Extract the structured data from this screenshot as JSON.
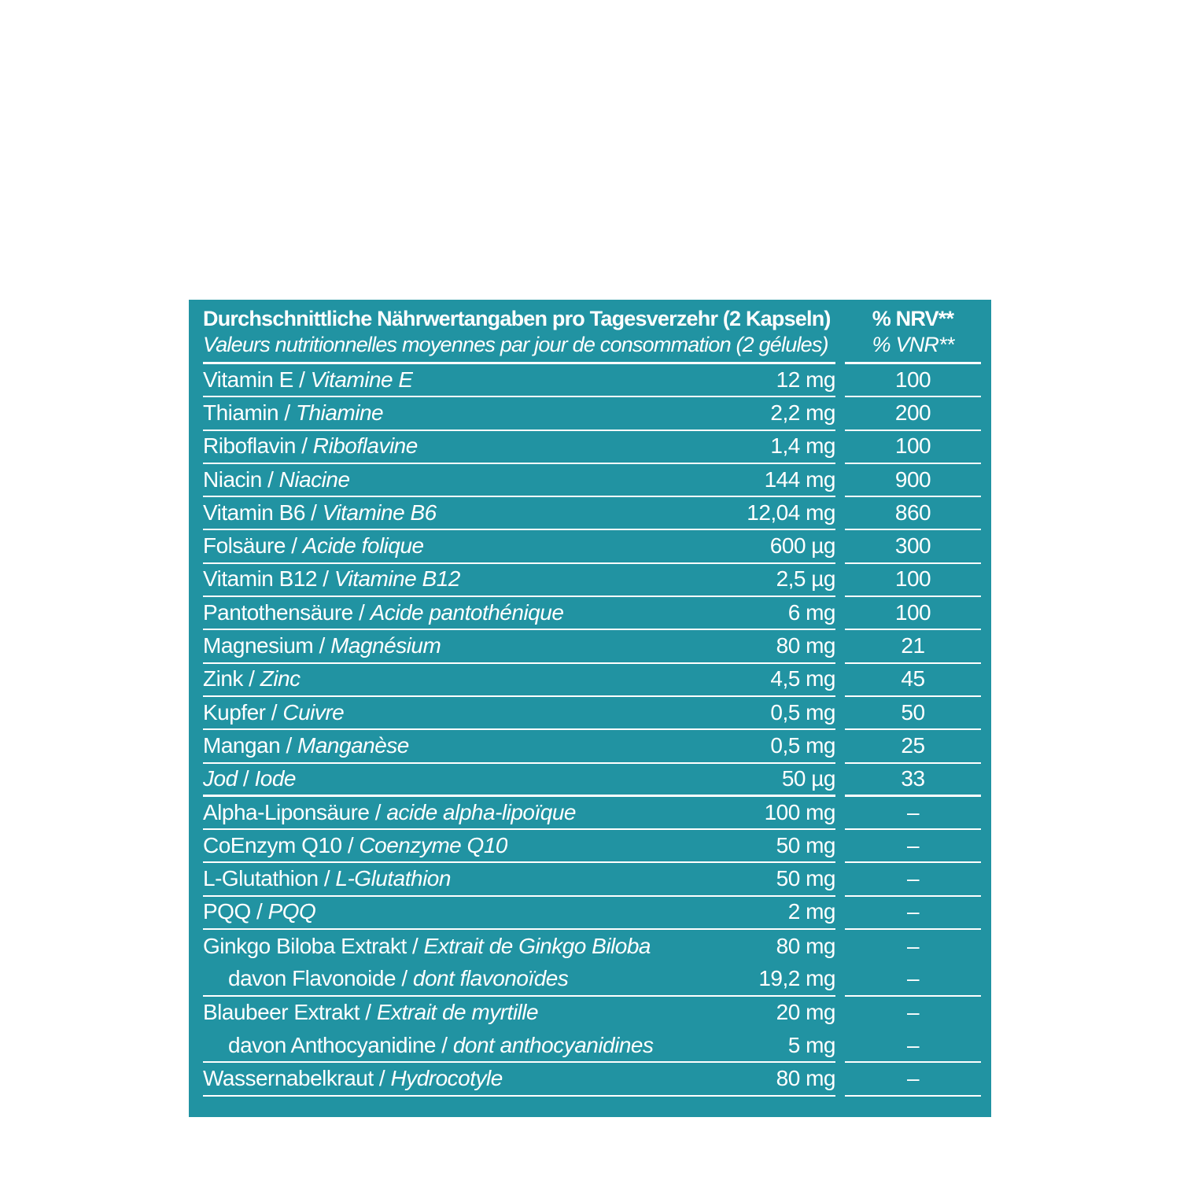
{
  "colors": {
    "panel_background": "#2193A2",
    "text": "#FFFFFF",
    "page_background": "#FFFFFF"
  },
  "separator": "/",
  "header": {
    "title_de": "Durchschnittliche Nährwertangaben pro Tagesverzehr (2 Kapseln)",
    "title_fr": "Valeurs nutritionnelles moyennes par jour de consommation (2 gélules)",
    "nrv_de": "% NRV**",
    "nrv_fr": "% VNR**"
  },
  "rows": [
    {
      "name_de": "Vitamin E",
      "name_fr": "Vitamine E",
      "amount": "12 mg",
      "nrv": "100",
      "italic_de": false,
      "indent": false,
      "divider": "normal"
    },
    {
      "name_de": "Thiamin",
      "name_fr": "Thiamine",
      "amount": "2,2 mg",
      "nrv": "200",
      "italic_de": false,
      "indent": false,
      "divider": "normal"
    },
    {
      "name_de": "Riboflavin",
      "name_fr": "Riboflavine",
      "amount": "1,4 mg",
      "nrv": "100",
      "italic_de": false,
      "indent": false,
      "divider": "normal"
    },
    {
      "name_de": "Niacin",
      "name_fr": "Niacine",
      "amount": "144 mg",
      "nrv": "900",
      "italic_de": false,
      "indent": false,
      "divider": "normal"
    },
    {
      "name_de": "Vitamin B6",
      "name_fr": "Vitamine B6",
      "amount": "12,04 mg",
      "nrv": "860",
      "italic_de": false,
      "indent": false,
      "divider": "normal"
    },
    {
      "name_de": "Folsäure",
      "name_fr": "Acide folique",
      "amount": "600 µg",
      "nrv": "300",
      "italic_de": false,
      "indent": false,
      "divider": "normal"
    },
    {
      "name_de": "Vitamin B12",
      "name_fr": "Vitamine B12",
      "amount": "2,5 µg",
      "nrv": "100",
      "italic_de": false,
      "indent": false,
      "divider": "normal"
    },
    {
      "name_de": "Pantothensäure",
      "name_fr": "Acide pantothénique",
      "amount": "6 mg",
      "nrv": "100",
      "italic_de": false,
      "indent": false,
      "divider": "normal"
    },
    {
      "name_de": "Magnesium",
      "name_fr": "Magnésium",
      "amount": "80 mg",
      "nrv": "21",
      "italic_de": false,
      "indent": false,
      "divider": "normal"
    },
    {
      "name_de": "Zink",
      "name_fr": "Zinc",
      "amount": "4,5 mg",
      "nrv": "45",
      "italic_de": false,
      "indent": false,
      "divider": "normal"
    },
    {
      "name_de": "Kupfer",
      "name_fr": "Cuivre",
      "amount": "0,5 mg",
      "nrv": "50",
      "italic_de": false,
      "indent": false,
      "divider": "normal"
    },
    {
      "name_de": "Mangan",
      "name_fr": "Manganèse",
      "amount": "0,5 mg",
      "nrv": "25",
      "italic_de": false,
      "indent": false,
      "divider": "normal"
    },
    {
      "name_de": "Jod",
      "name_fr": "Iode",
      "amount": "50 µg",
      "nrv": "33",
      "italic_de": true,
      "indent": false,
      "divider": "thick"
    },
    {
      "name_de": "Alpha-Liponsäure",
      "name_fr": "acide alpha-lipoïque",
      "amount": "100 mg",
      "nrv": "–",
      "italic_de": false,
      "indent": false,
      "divider": "normal"
    },
    {
      "name_de": "CoEnzym Q10",
      "name_fr": "Coenzyme Q10",
      "amount": "50 mg",
      "nrv": "–",
      "italic_de": false,
      "indent": false,
      "divider": "normal"
    },
    {
      "name_de": "L-Glutathion",
      "name_fr": "L-Glutathion",
      "amount": "50 mg",
      "nrv": "–",
      "italic_de": false,
      "indent": false,
      "divider": "normal"
    },
    {
      "name_de": "PQQ",
      "name_fr": "PQQ",
      "amount": "2 mg",
      "nrv": "–",
      "italic_de": false,
      "indent": false,
      "divider": "normal"
    },
    {
      "name_de": "Ginkgo Biloba Extrakt",
      "name_fr": "Extrait de Ginkgo Biloba",
      "amount": "80 mg",
      "nrv": "–",
      "italic_de": false,
      "indent": false,
      "divider": "none"
    },
    {
      "name_de": "davon Flavonoide",
      "name_fr": "dont flavonoïdes",
      "amount": "19,2 mg",
      "nrv": "–",
      "italic_de": false,
      "indent": true,
      "divider": "normal"
    },
    {
      "name_de": "Blaubeer Extrakt",
      "name_fr": "Extrait de myrtille",
      "amount": "20 mg",
      "nrv": "–",
      "italic_de": false,
      "indent": false,
      "divider": "none"
    },
    {
      "name_de": "davon Anthocyanidine",
      "name_fr": "dont anthocyanidines",
      "amount": "5 mg",
      "nrv": "–",
      "italic_de": false,
      "indent": true,
      "divider": "normal"
    },
    {
      "name_de": "Wassernabelkraut",
      "name_fr": "Hydrocotyle",
      "amount": "80 mg",
      "nrv": "–",
      "italic_de": false,
      "indent": false,
      "divider": "normal"
    }
  ]
}
